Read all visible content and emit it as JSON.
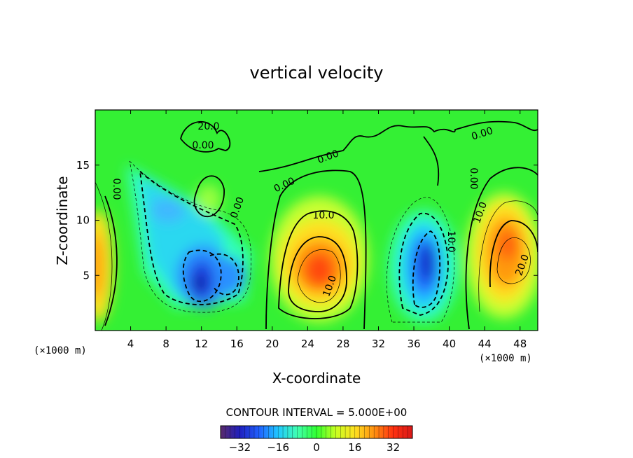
{
  "chart_data": {
    "type": "heatmap",
    "title": "vertical velocity",
    "xlabel": "X-coordinate",
    "ylabel": "Z-coordinate",
    "x_unit": "(×1000 m)",
    "z_unit": "(×1000 m)",
    "xlim": [
      0,
      50
    ],
    "ylim": [
      0,
      20
    ],
    "x_ticks": [
      4,
      8,
      12,
      16,
      20,
      24,
      28,
      32,
      36,
      40,
      44,
      48
    ],
    "y_ticks": [
      5,
      10,
      15
    ],
    "contour_interval_text": "CONTOUR INTERVAL = 5.000E+00",
    "contour_interval": 5,
    "colorbar": {
      "range": [
        -40,
        40
      ],
      "ticks": [
        -32,
        -16,
        0,
        16,
        32
      ],
      "colors": [
        "#5a2a6a",
        "#1f1fbf",
        "#2060ff",
        "#20c8ff",
        "#40ffb0",
        "#30ff30",
        "#c8ff20",
        "#ffe020",
        "#ff9010",
        "#ff3010",
        "#d81818"
      ]
    },
    "features": [
      {
        "name": "downdraft-left",
        "center_x": 12,
        "center_z": 4.5,
        "peak": -32
      },
      {
        "name": "downdraft-left-secondary",
        "center_x": 14.5,
        "center_z": 5.5,
        "peak": -20
      },
      {
        "name": "upward-branch-left",
        "center_x": 8,
        "center_z": 11,
        "peak": -12
      },
      {
        "name": "updraft-center",
        "center_x": 25.5,
        "center_z": 5.5,
        "peak": 30
      },
      {
        "name": "downdraft-right",
        "center_x": 37,
        "center_z": 5.5,
        "peak": -30
      },
      {
        "name": "updraft-right",
        "center_x": 46,
        "center_z": 7,
        "peak": 25
      },
      {
        "name": "updraft-left-edge",
        "center_x": 0,
        "center_z": 6,
        "peak": 14
      },
      {
        "name": "small-updraft-top",
        "center_x": 12.8,
        "center_z": 11.3,
        "peak": 10
      }
    ],
    "contour_labels": [
      "0.00",
      "0.00",
      "0.00",
      "0.00",
      "0.00",
      "0.00",
      "0.00",
      "10.0",
      "10.0",
      "10.0",
      "10.0",
      "20.0",
      "20.0"
    ]
  }
}
